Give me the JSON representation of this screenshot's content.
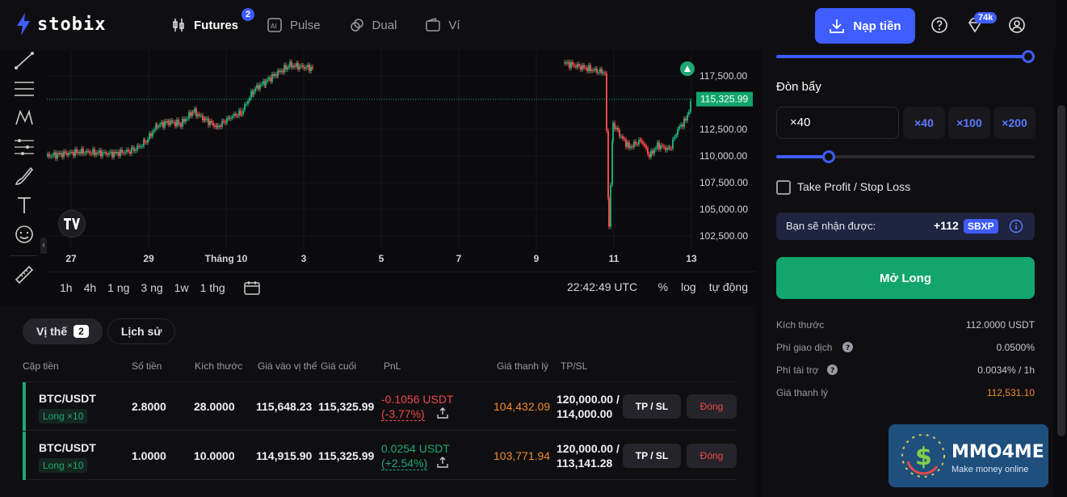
{
  "brand": {
    "name": "stobix"
  },
  "nav": {
    "items": [
      {
        "label": "Futures",
        "badge": "2",
        "icon": "candles-icon"
      },
      {
        "label": "Pulse",
        "icon": "ai-icon"
      },
      {
        "label": "Dual",
        "icon": "coins-icon"
      },
      {
        "label": "Ví",
        "icon": "wallet-icon"
      }
    ]
  },
  "header": {
    "deposit_label": "Nạp tiền",
    "gem_badge": "74k"
  },
  "chart": {
    "price_labels": [
      "117,500.00",
      "112,500.00",
      "110,000.00",
      "107,500.00",
      "105,000.00",
      "102,500.00"
    ],
    "current_price": "115,325.99",
    "x_labels": [
      "27",
      "29",
      "Tháng 10",
      "3",
      "5",
      "7",
      "9",
      "11",
      "13"
    ],
    "timeframes": [
      "1h",
      "4h",
      "1 ng",
      "3 ng",
      "1w",
      "1 thg"
    ],
    "timestamp": "22:42:49 UTC",
    "scale_options": [
      "%",
      "log",
      "tự động"
    ]
  },
  "positions": {
    "tabs": [
      {
        "label": "Vị thế",
        "count": "2"
      },
      {
        "label": "Lịch sử"
      }
    ],
    "headers": [
      "Cặp tiền",
      "Số tiền",
      "Kích thước",
      "Giá vào vị thế",
      "Giá cuối",
      "PnL",
      "Giá thanh lý",
      "TP/SL"
    ],
    "rows": [
      {
        "pair": "BTC/USDT",
        "leverage": "Long ×10",
        "amount": "2.8000",
        "size": "28.0000",
        "entry": "115,648.23",
        "last": "115,325.99",
        "pnl": "-0.1056 USDT",
        "pnl_pct": "(-3.77%)",
        "liq": "104,432.09",
        "tp": "120,000.00 /",
        "sl": "114,000.00",
        "tp_btn": "TP / SL",
        "close_btn": "Đóng"
      },
      {
        "pair": "BTC/USDT",
        "leverage": "Long ×10",
        "amount": "1.0000",
        "size": "10.0000",
        "entry": "114,915.90",
        "last": "115,325.99",
        "pnl": "0.0254 USDT",
        "pnl_pct": "(+2.54%)",
        "liq": "103,771.94",
        "tp": "120,000.00 /",
        "sl": "113,141.28",
        "tp_btn": "TP / SL",
        "close_btn": "Đóng"
      }
    ]
  },
  "panel": {
    "leverage_label": "Đòn bẩy",
    "leverage_value": "×40",
    "leverage_chips": [
      "×40",
      "×100",
      "×200"
    ],
    "tpsl_label": "Take Profit / Stop Loss",
    "receive_label": "Bạn sẽ nhận được:",
    "receive_value": "+112",
    "receive_token": "SBXP",
    "open_long": "Mở Long",
    "info": [
      {
        "label": "Kích thước",
        "value": "112.0000 USDT"
      },
      {
        "label": "Phí giao dịch",
        "value": "0.0500%"
      },
      {
        "label": "Phí tài trợ",
        "value": "0.0034% / 1h"
      },
      {
        "label": "Giá thanh lý",
        "value": "112,531.10"
      }
    ]
  },
  "watermark": {
    "title": "MMO4ME",
    "subtitle": "Make money online"
  }
}
